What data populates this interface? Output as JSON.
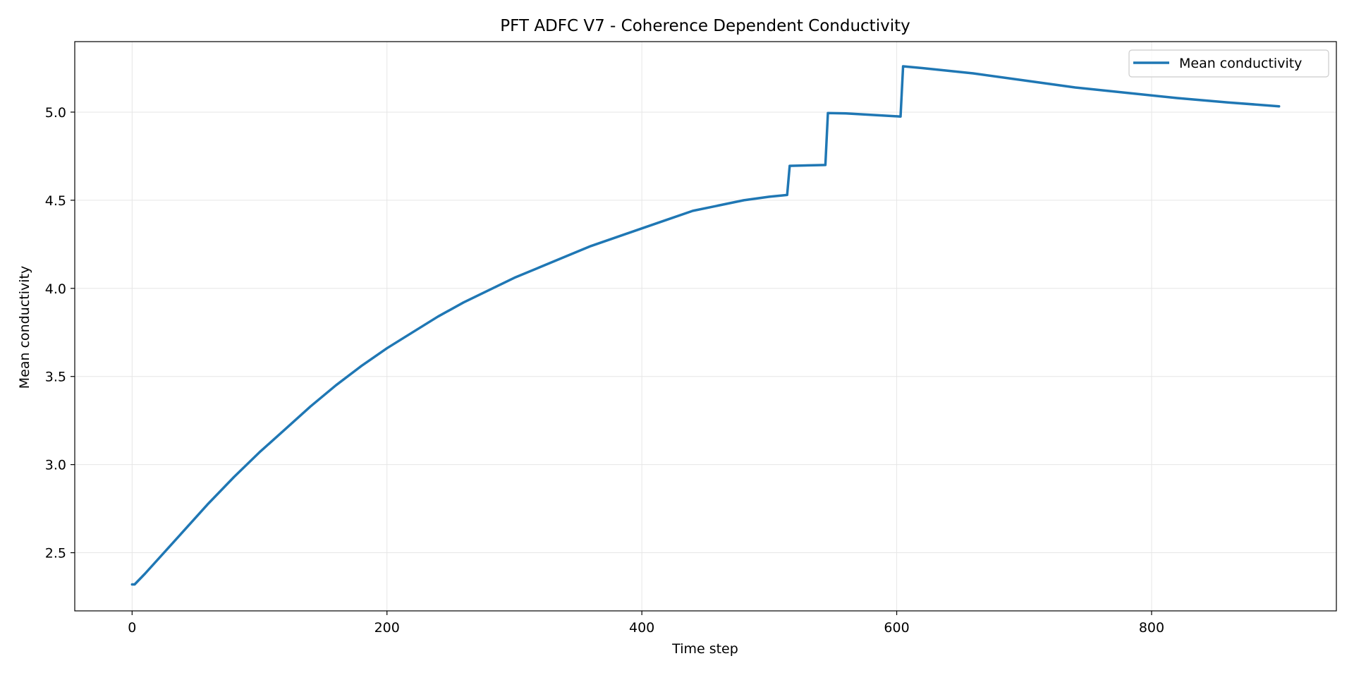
{
  "chart_data": {
    "type": "line",
    "title": "PFT ADFC V7 - Coherence Dependent Conductivity",
    "xlabel": "Time step",
    "ylabel": "Mean conductivity",
    "xlim": [
      -45,
      945
    ],
    "ylim": [
      2.17,
      5.4
    ],
    "x_ticks": [
      0,
      200,
      400,
      600,
      800
    ],
    "x_tick_labels": [
      "0",
      "200",
      "400",
      "600",
      "800"
    ],
    "y_ticks": [
      2.5,
      3.0,
      3.5,
      4.0,
      4.5,
      5.0
    ],
    "y_tick_labels": [
      "2.5",
      "3.0",
      "3.5",
      "4.0",
      "4.5",
      "5.0"
    ],
    "grid": true,
    "legend_position": "top-right",
    "series": [
      {
        "name": "Mean conductivity",
        "color": "#1f77b4",
        "points": [
          [
            0,
            2.32
          ],
          [
            2,
            2.32
          ],
          [
            10,
            2.38
          ],
          [
            20,
            2.46
          ],
          [
            40,
            2.62
          ],
          [
            60,
            2.78
          ],
          [
            80,
            2.93
          ],
          [
            100,
            3.07
          ],
          [
            120,
            3.2
          ],
          [
            140,
            3.33
          ],
          [
            160,
            3.45
          ],
          [
            180,
            3.56
          ],
          [
            200,
            3.66
          ],
          [
            220,
            3.75
          ],
          [
            240,
            3.84
          ],
          [
            260,
            3.92
          ],
          [
            280,
            3.99
          ],
          [
            300,
            4.06
          ],
          [
            320,
            4.12
          ],
          [
            340,
            4.18
          ],
          [
            360,
            4.24
          ],
          [
            380,
            4.29
          ],
          [
            400,
            4.34
          ],
          [
            420,
            4.39
          ],
          [
            440,
            4.44
          ],
          [
            460,
            4.47
          ],
          [
            480,
            4.5
          ],
          [
            500,
            4.52
          ],
          [
            514,
            4.53
          ],
          [
            516,
            4.695
          ],
          [
            544,
            4.7
          ],
          [
            546,
            4.995
          ],
          [
            560,
            4.993
          ],
          [
            603,
            4.975
          ],
          [
            605,
            5.26
          ],
          [
            620,
            5.25
          ],
          [
            660,
            5.22
          ],
          [
            700,
            5.18
          ],
          [
            740,
            5.14
          ],
          [
            780,
            5.11
          ],
          [
            820,
            5.08
          ],
          [
            860,
            5.055
          ],
          [
            900,
            5.033
          ]
        ]
      }
    ]
  }
}
